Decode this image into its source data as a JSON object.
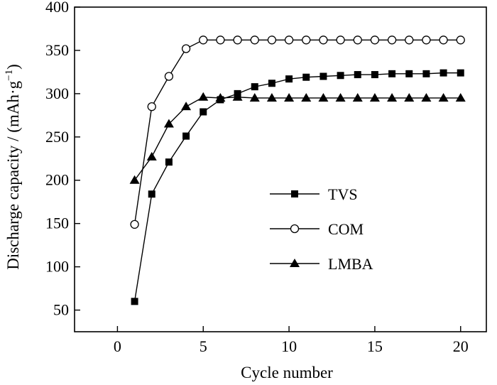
{
  "chart_data": {
    "type": "line",
    "xlabel": "Cycle number",
    "ylabel": "Discharge capacity / (mAh·g",
    "ylabel_sup": "−1",
    "ylabel_close": ")",
    "xlim": [
      -2.5,
      21.5
    ],
    "ylim": [
      25,
      400
    ],
    "xticks": [
      0,
      5,
      10,
      15,
      20
    ],
    "xtick_labels": [
      "0",
      "5",
      "10",
      "15",
      "20"
    ],
    "yticks": [
      50,
      100,
      150,
      200,
      250,
      300,
      350,
      400
    ],
    "ytick_labels": [
      "50",
      "100",
      "150",
      "200",
      "250",
      "300",
      "350",
      "400"
    ],
    "grid": false,
    "legend_position": "center-right",
    "series": [
      {
        "name": "TVS",
        "marker": "filled-square",
        "x": [
          1,
          2,
          3,
          4,
          5,
          6,
          7,
          8,
          9,
          10,
          11,
          12,
          13,
          14,
          15,
          16,
          17,
          18,
          19,
          20
        ],
        "y": [
          60,
          184,
          221,
          251,
          279,
          293,
          300,
          308,
          312,
          317,
          319,
          320,
          321,
          322,
          322,
          323,
          323,
          323,
          324,
          324
        ]
      },
      {
        "name": "COM",
        "marker": "open-circle",
        "x": [
          1,
          2,
          3,
          4,
          5,
          6,
          7,
          8,
          9,
          10,
          11,
          12,
          13,
          14,
          15,
          16,
          17,
          18,
          19,
          20
        ],
        "y": [
          149,
          285,
          320,
          352,
          362,
          362,
          362,
          362,
          362,
          362,
          362,
          362,
          362,
          362,
          362,
          362,
          362,
          362,
          362,
          362
        ]
      },
      {
        "name": "LMBA",
        "marker": "filled-triangle",
        "x": [
          1,
          2,
          3,
          4,
          5,
          6,
          7,
          8,
          9,
          10,
          11,
          12,
          13,
          14,
          15,
          16,
          17,
          18,
          19,
          20
        ],
        "y": [
          200,
          227,
          265,
          285,
          296,
          295,
          296,
          295,
          295,
          295,
          295,
          295,
          295,
          295,
          295,
          295,
          295,
          295,
          295,
          295
        ]
      }
    ]
  }
}
